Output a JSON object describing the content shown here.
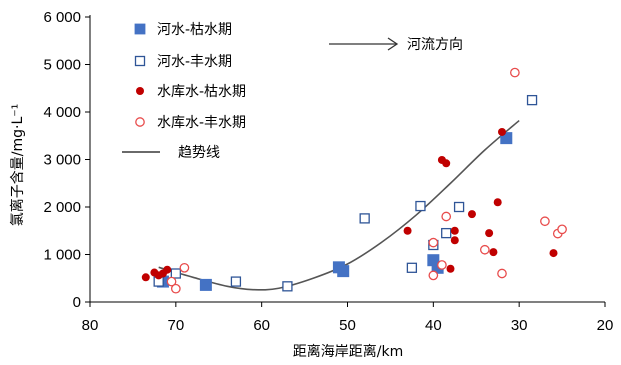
{
  "chart_data": {
    "type": "scatter",
    "xlabel": "距离海岸距离/km",
    "ylabel": "氯离子含量/mg·L⁻¹",
    "xlim": [
      80,
      20
    ],
    "ylim": [
      0,
      6000
    ],
    "x_ticks": [
      {
        "value": 80,
        "label": "80"
      },
      {
        "value": 70,
        "label": "70"
      },
      {
        "value": 60,
        "label": "60"
      },
      {
        "value": 50,
        "label": "50"
      },
      {
        "value": 40,
        "label": "40"
      },
      {
        "value": 30,
        "label": "30"
      },
      {
        "value": 20,
        "label": "20"
      }
    ],
    "y_ticks": [
      {
        "value": 0,
        "label": "0"
      },
      {
        "value": 1000,
        "label": "1 000"
      },
      {
        "value": 2000,
        "label": "2 000"
      },
      {
        "value": 3000,
        "label": "3 000"
      },
      {
        "value": 4000,
        "label": "4 000"
      },
      {
        "value": 5000,
        "label": "5 000"
      },
      {
        "value": 6000,
        "label": "6 000"
      }
    ],
    "grid": false,
    "legend_position": "top-left",
    "series": [
      {
        "name": "河水-枯水期",
        "marker": "square-filled",
        "color": "#4472c4",
        "points": [
          [
            71.5,
            430
          ],
          [
            66.5,
            360
          ],
          [
            51,
            730
          ],
          [
            50.5,
            650
          ],
          [
            39.5,
            720
          ],
          [
            40,
            880
          ],
          [
            31.5,
            3450
          ]
        ]
      },
      {
        "name": "河水-丰水期",
        "marker": "square-open",
        "color": "#2f5597",
        "points": [
          [
            72,
            430
          ],
          [
            70,
            600
          ],
          [
            63,
            430
          ],
          [
            57,
            330
          ],
          [
            48,
            1760
          ],
          [
            42.5,
            720
          ],
          [
            41.5,
            2020
          ],
          [
            40,
            1200
          ],
          [
            38.5,
            1450
          ],
          [
            37,
            2000
          ],
          [
            28.5,
            4250
          ]
        ]
      },
      {
        "name": "水库水-枯水期",
        "marker": "circle-filled",
        "color": "#c00000",
        "points": [
          [
            73.5,
            520
          ],
          [
            72.5,
            620
          ],
          [
            72,
            560
          ],
          [
            71.5,
            600
          ],
          [
            71,
            680
          ],
          [
            43,
            1500
          ],
          [
            39,
            2990
          ],
          [
            38.5,
            2920
          ],
          [
            38,
            700
          ],
          [
            37.5,
            1300
          ],
          [
            37.5,
            1500
          ],
          [
            35.5,
            1850
          ],
          [
            33.5,
            1450
          ],
          [
            33,
            1050
          ],
          [
            32.5,
            2100
          ],
          [
            32,
            3580
          ],
          [
            26,
            1030
          ]
        ]
      },
      {
        "name": "水库水-丰水期",
        "marker": "circle-open",
        "color": "#e84c4c",
        "points": [
          [
            70.5,
            430
          ],
          [
            69,
            720
          ],
          [
            70,
            280
          ],
          [
            40,
            560
          ],
          [
            40,
            1250
          ],
          [
            39,
            780
          ],
          [
            38.5,
            1800
          ],
          [
            34,
            1100
          ],
          [
            32,
            600
          ],
          [
            30.5,
            4830
          ],
          [
            27,
            1700
          ],
          [
            25.5,
            1440
          ],
          [
            25,
            1530
          ]
        ]
      }
    ],
    "trendline": {
      "name": "趋势线",
      "color": "#555555",
      "points": [
        [
          72,
          730
        ],
        [
          68,
          520
        ],
        [
          64,
          330
        ],
        [
          61,
          260
        ],
        [
          58,
          290
        ],
        [
          54,
          500
        ],
        [
          50,
          800
        ],
        [
          46,
          1260
        ],
        [
          42,
          1830
        ],
        [
          38,
          2500
        ],
        [
          34,
          3200
        ],
        [
          30,
          3820
        ]
      ]
    },
    "annotation": {
      "text": "河流方向"
    }
  }
}
